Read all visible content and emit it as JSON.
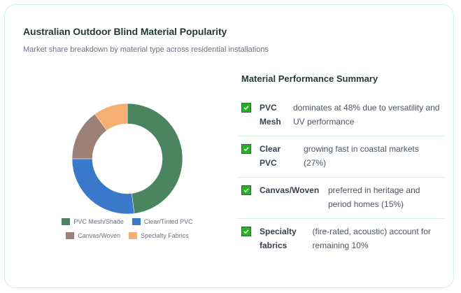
{
  "header": {
    "title": "Australian Outdoor Blind Material Popularity",
    "subtitle": "Market share breakdown by material type across residential installations"
  },
  "chart_data": {
    "type": "pie",
    "subtype": "donut",
    "title": "Australian Outdoor Blind Material Popularity",
    "subtitle": "Market share breakdown by material type across residential installations",
    "categories": [
      "PVC Mesh/Shade",
      "Clear/Tinted PVC",
      "Canvas/Woven",
      "Specialty Fabrics"
    ],
    "values": [
      48,
      27,
      15,
      10
    ],
    "colors": [
      "#4a8560",
      "#3a78c9",
      "#9e8176",
      "#f6ae72"
    ],
    "legend_position": "bottom",
    "units": "%"
  },
  "legend": {
    "items": [
      {
        "label": "PVC Mesh/Shade",
        "color": "#4a8560"
      },
      {
        "label": "Clear/Tinted PVC",
        "color": "#3a78c9"
      },
      {
        "label": "Canvas/Woven",
        "color": "#9e8176"
      },
      {
        "label": "Specialty Fabrics",
        "color": "#f6ae72"
      }
    ]
  },
  "summary": {
    "title": "Material Performance Summary",
    "items": [
      {
        "label_line1": "PVC",
        "label_line2": "Mesh",
        "desc": "dominates at 48% due to versatility and UV performance"
      },
      {
        "label_line1": "Clear",
        "label_line2": "PVC",
        "desc": "growing fast in coastal markets (27%)"
      },
      {
        "label_line1": "Canvas/Woven",
        "label_line2": "",
        "desc": "preferred in heritage and period homes (15%)"
      },
      {
        "label_line1": "Specialty",
        "label_line2": "fabrics",
        "desc": "(fire-rated, acoustic) account for remaining 10%"
      }
    ],
    "check_color": "#22b222"
  }
}
